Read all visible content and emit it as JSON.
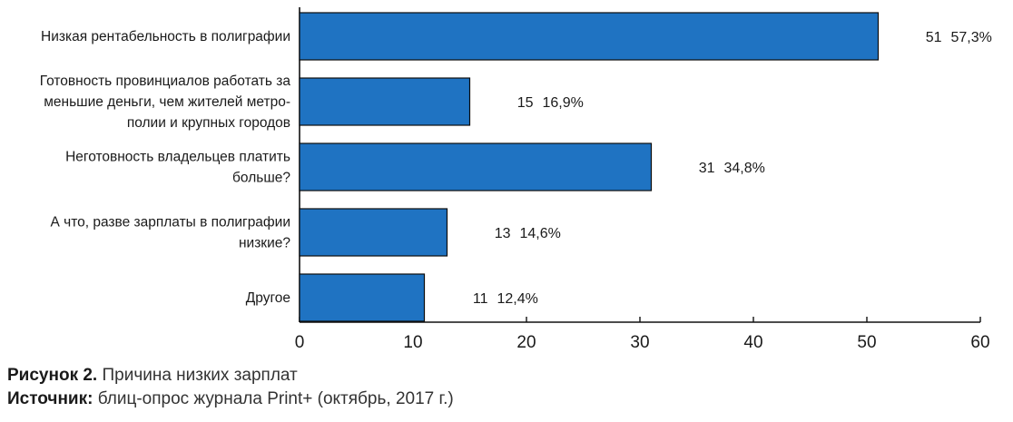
{
  "chart_data": {
    "type": "bar",
    "orientation": "horizontal",
    "categories": [
      [
        "Низкая рентабельность в полиграфии"
      ],
      [
        "Готовность провинциалов работать за",
        "меньшие деньги, чем жителей метро-",
        "полии и крупных городов"
      ],
      [
        "Неготовность владельцев платить",
        "больше?"
      ],
      [
        "А что, разве зарплаты в полиграфии",
        "низкие?"
      ],
      [
        "Другое"
      ]
    ],
    "values": [
      51,
      15,
      31,
      13,
      11
    ],
    "percent_labels": [
      "57,3%",
      "16,9%",
      "34,8%",
      "14,6%",
      "12,4%"
    ],
    "xlim": [
      0,
      60
    ],
    "xticks": [
      0,
      10,
      20,
      30,
      40,
      50,
      60
    ],
    "bar_color": "#1f73c2",
    "bar_edge_color": "#0d0d0d",
    "grid": false,
    "legend": "none"
  },
  "caption": {
    "figure_label": "Рисунок 2.",
    "figure_text": " Причина низких зарплат",
    "source_label": "Источник:",
    "source_text": " блиц-опрос журнала Print+ (октябрь, 2017 г.)"
  }
}
